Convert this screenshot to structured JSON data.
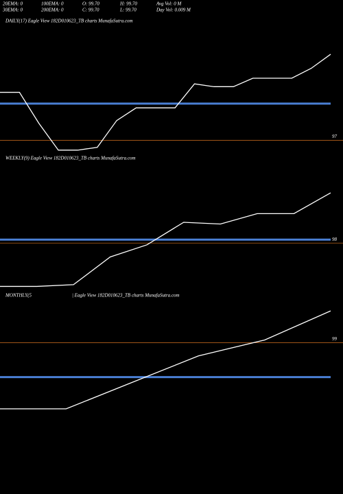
{
  "header": [
    [
      "20EMA: 0",
      "100EMA: 0",
      "O: 99.70",
      "H: 99.70",
      "Avg Vol: 0  M"
    ],
    [
      "30EMA: 0",
      "200EMA: 0",
      "C: 99.70",
      "L: 99.70",
      "Day Vol: 0.009 M"
    ]
  ],
  "chart_data": [
    {
      "type": "line",
      "title": "DAILY(17) Eagle  View  182D010623_TB charts MunafaSutra.com",
      "color": "#ffffff",
      "values": [
        97.34,
        97.34,
        97.12,
        96.93,
        96.93,
        96.95,
        97.14,
        97.23,
        97.23,
        97.23,
        97.4,
        97.38,
        97.38,
        97.44,
        97.44,
        97.44,
        97.51,
        97.61
      ],
      "ylim": [
        96.9,
        97.8
      ],
      "yticks": [
        97
      ],
      "grid_color": "#b8621b",
      "ref_line": {
        "value": 97.26,
        "color": "#4a7fd4"
      }
    },
    {
      "type": "line",
      "title": "WEEKLY(9) Eagle  View  182D010623_TB charts MunafaSutra.com",
      "color": "#ffffff",
      "values": [
        97.75,
        97.75,
        97.76,
        97.92,
        97.99,
        98.12,
        98.11,
        98.17,
        98.17,
        98.29
      ],
      "ylim": [
        97.72,
        98.5
      ],
      "yticks": [
        98
      ],
      "grid_color": "#b8621b",
      "ref_line": {
        "value": 98.02,
        "color": "#4a7fd4"
      }
    },
    {
      "type": "line",
      "title": "MONTHLY(5",
      "subtitle": "| Eagle  View  182D010623_TB charts MunafaSutra.com",
      "color": "#ffffff",
      "values": [
        98.75,
        98.75,
        98.85,
        98.95,
        99.01,
        99.12
      ],
      "ylim": [
        98.48,
        99.18
      ],
      "yticks": [
        99
      ],
      "grid_color": "#b8621b",
      "ref_line": {
        "value": 98.87,
        "color": "#4a7fd4"
      }
    }
  ]
}
